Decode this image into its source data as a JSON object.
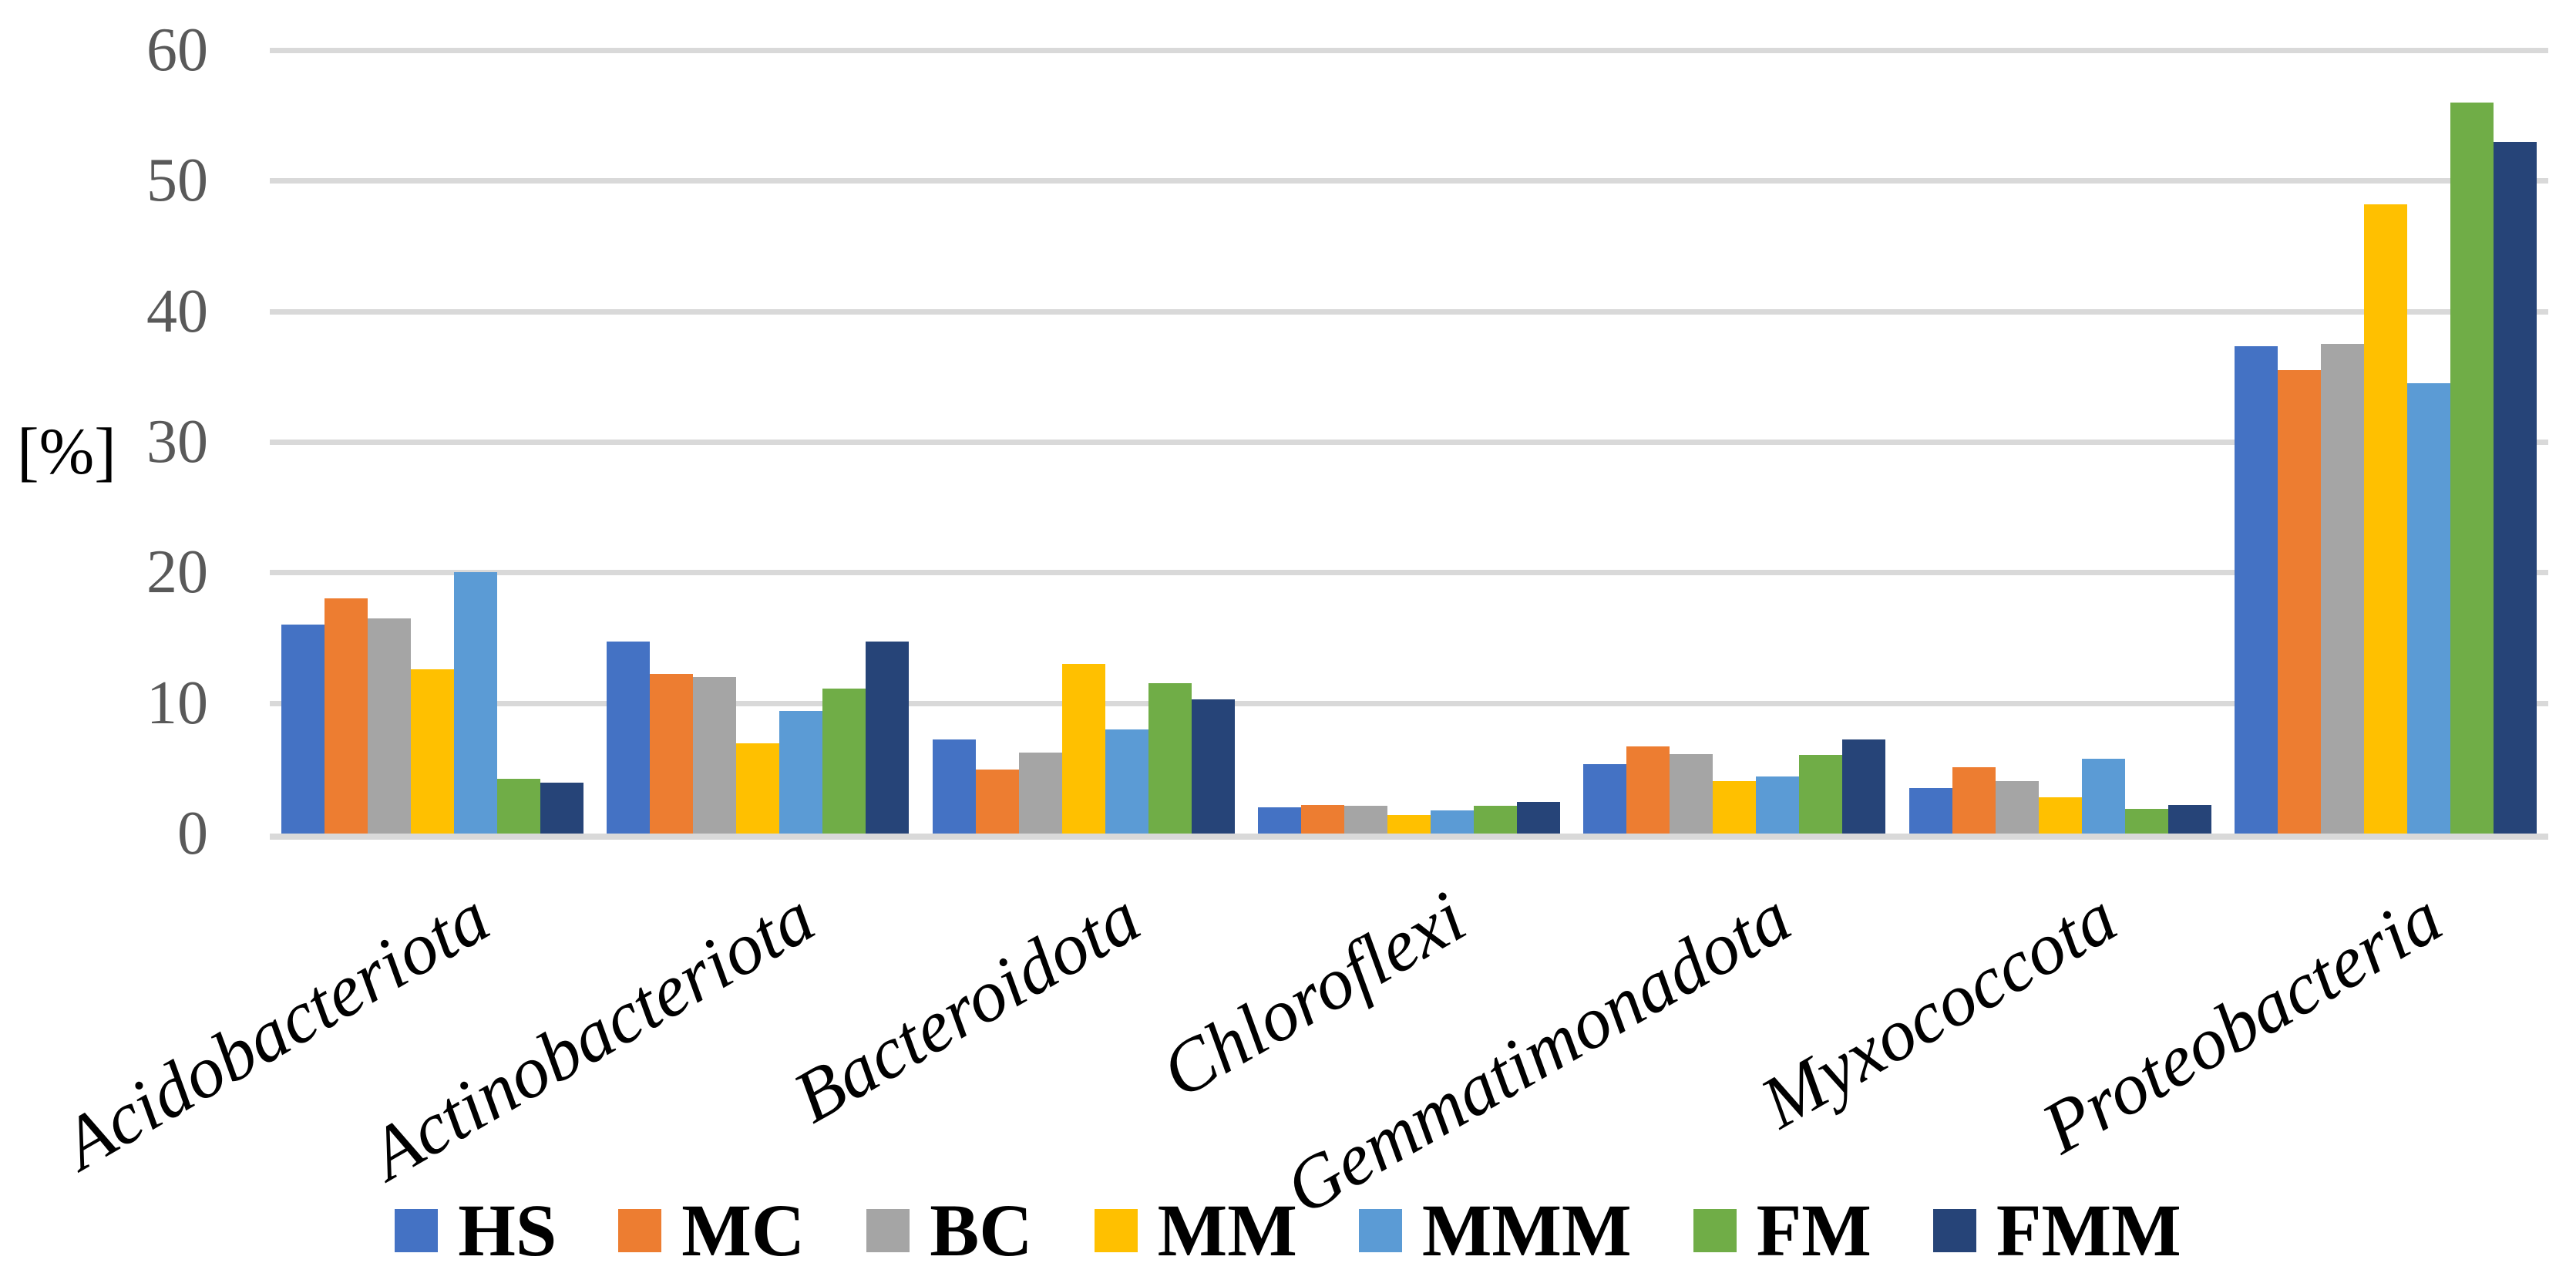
{
  "chart_data": {
    "type": "bar",
    "title": "",
    "xlabel": "",
    "ylabel": "[%]",
    "ylim": [
      0,
      60
    ],
    "yticks": [
      0,
      10,
      20,
      30,
      40,
      50,
      60
    ],
    "grid": "horizontal",
    "legend_position": "bottom-center",
    "categories": [
      "Acidobacteriota",
      "Actinobacteriota",
      "Bacteroidota",
      "Chloroflexi",
      "Gemmatimonadota",
      "Myxococcota",
      "Proteobacteria"
    ],
    "series": [
      {
        "name": "HS",
        "color": "#4472C4",
        "values": [
          16.0,
          14.7,
          7.2,
          2.0,
          5.3,
          3.5,
          37.3
        ]
      },
      {
        "name": "MC",
        "color": "#ED7D31",
        "values": [
          18.0,
          12.2,
          4.9,
          2.2,
          6.7,
          5.1,
          35.5
        ]
      },
      {
        "name": "BC",
        "color": "#A5A5A5",
        "values": [
          16.5,
          12.0,
          6.2,
          2.1,
          6.1,
          4.0,
          37.5
        ]
      },
      {
        "name": "MM",
        "color": "#FFC000",
        "values": [
          12.6,
          6.9,
          13.0,
          1.4,
          4.0,
          2.8,
          48.2
        ]
      },
      {
        "name": "MMM",
        "color": "#5B9BD5",
        "values": [
          20.0,
          9.4,
          8.0,
          1.8,
          4.4,
          5.7,
          34.5
        ]
      },
      {
        "name": "FM",
        "color": "#70AD47",
        "values": [
          4.2,
          11.1,
          11.5,
          2.1,
          6.0,
          1.9,
          56.0
        ]
      },
      {
        "name": "FMM",
        "color": "#264478",
        "values": [
          3.9,
          14.7,
          10.3,
          2.4,
          7.2,
          2.2,
          53.0
        ]
      }
    ]
  },
  "style": {
    "background": "#FFFFFF",
    "gridline_color": "#D9D9D9",
    "axis_line_color": "#D9D9D9",
    "tick_label_color": "#595959",
    "text_color": "#000000"
  }
}
